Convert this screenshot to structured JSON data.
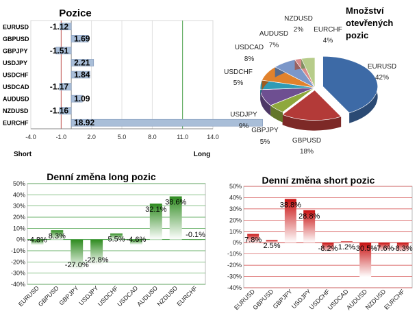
{
  "chart_data": [
    {
      "type": "bar",
      "orientation": "horizontal",
      "title": "Pozice",
      "categories": [
        "EURUSD",
        "GBPUSD",
        "GBPJPY",
        "USDJPY",
        "USDCHF",
        "USDCAD",
        "AUDUSD",
        "NZDUSD",
        "EURCHF"
      ],
      "values": [
        -1.12,
        1.69,
        -1.51,
        2.21,
        1.84,
        -1.17,
        1.09,
        -1.16,
        18.92
      ],
      "value_labels": [
        "-1.12",
        "1.69",
        "-1.51",
        "2.21",
        "1.84",
        "-1.17",
        "1.09",
        "-1.16",
        "18.92"
      ],
      "xlim": [
        -4.0,
        14.0
      ],
      "xticks": [
        "-4.0",
        "-1.0",
        "2.0",
        "5.0",
        "8.0",
        "11.0",
        "14.0"
      ],
      "short_label": "Short",
      "long_label": "Long",
      "bar_color": "#a9bed8",
      "grid": true
    },
    {
      "type": "pie",
      "title_lines": [
        "Množství",
        "otevřených",
        "pozic"
      ],
      "slices": [
        {
          "label": "EURUSD",
          "value": 42,
          "text": "42%",
          "color": "#3d6aa6"
        },
        {
          "label": "GBPUSD",
          "value": 18,
          "text": "18%",
          "color": "#b33a38"
        },
        {
          "label": "GBPJPY",
          "value": 5,
          "text": "5%",
          "color": "#8ea83d"
        },
        {
          "label": "USDJPY",
          "value": 9,
          "text": "9%",
          "color": "#6e4f91"
        },
        {
          "label": "USDCHF",
          "value": 5,
          "text": "5%",
          "color": "#2f9bb5"
        },
        {
          "label": "USDCAD",
          "value": 8,
          "text": "8%",
          "color": "#e1822c"
        },
        {
          "label": "AUDUSD",
          "value": 7,
          "text": "7%",
          "color": "#7b97c9"
        },
        {
          "label": "NZDUSD",
          "value": 2,
          "text": "2%",
          "color": "#d98b8b"
        },
        {
          "label": "EURCHF",
          "value": 4,
          "text": "4%",
          "color": "#b7cc8a"
        }
      ]
    },
    {
      "type": "bar",
      "title": "Denní změna long pozic",
      "categories": [
        "EURUSD",
        "GBPUSD",
        "GBPJPY",
        "USDJPY",
        "USDCHF",
        "USDCAD",
        "AUDUSD",
        "NZDUSD",
        "EURCHF"
      ],
      "values": [
        -4.8,
        8.3,
        -27.0,
        -22.8,
        5.5,
        -4.6,
        32.1,
        38.6,
        -0.1
      ],
      "value_labels": [
        "-4.8%",
        "8.3%",
        "-27.0%",
        "-22.8%",
        "5.5%",
        "-4.6%",
        "32.1%",
        "38.6%",
        "-0.1%"
      ],
      "ylim": [
        -40,
        50
      ],
      "yticks": [
        "50%",
        "40%",
        "30%",
        "20%",
        "10%",
        "0%",
        "-10%",
        "-20%",
        "-30%",
        "-40%"
      ],
      "bar_color": "#2e8b1f",
      "grid_color": "#3c9a3c",
      "grid": true
    },
    {
      "type": "bar",
      "title": "Denní změna short pozic",
      "categories": [
        "EURUSD",
        "GBPUSD",
        "GBPJPY",
        "USDJPY",
        "USDCHF",
        "USDCAD",
        "AUDUSD",
        "NZDUSD",
        "EURCHF"
      ],
      "values": [
        7.8,
        2.5,
        38.8,
        28.8,
        -8.2,
        1.2,
        -30.5,
        -7.6,
        -8.3
      ],
      "value_labels": [
        "7.8%",
        "2.5%",
        "38.8%",
        "28.8%",
        "-8.2%",
        "1.2%",
        "-30.5%",
        "-7.6%",
        "-8.3%"
      ],
      "ylim": [
        -40,
        50
      ],
      "yticks": [
        "50%",
        "40%",
        "30%",
        "20%",
        "10%",
        "0%",
        "-10%",
        "-20%",
        "-30%",
        "-40%"
      ],
      "bar_color": "#c81010",
      "grid_color": "#d04040",
      "grid": true
    }
  ]
}
